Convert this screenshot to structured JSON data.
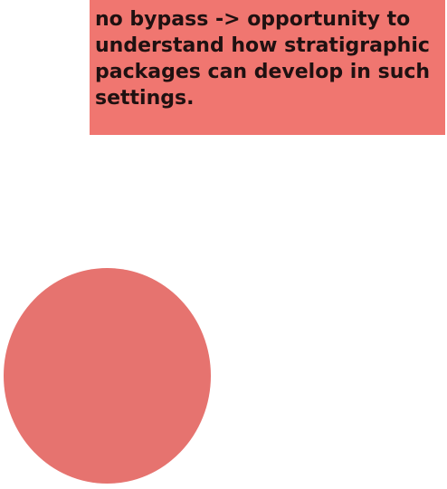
{
  "note": {
    "text": "no bypass -> opportunity to understand how stratigraphic packages can develop in such settings.",
    "color": "#f07670"
  },
  "circle": {
    "color": "#e6736f"
  }
}
